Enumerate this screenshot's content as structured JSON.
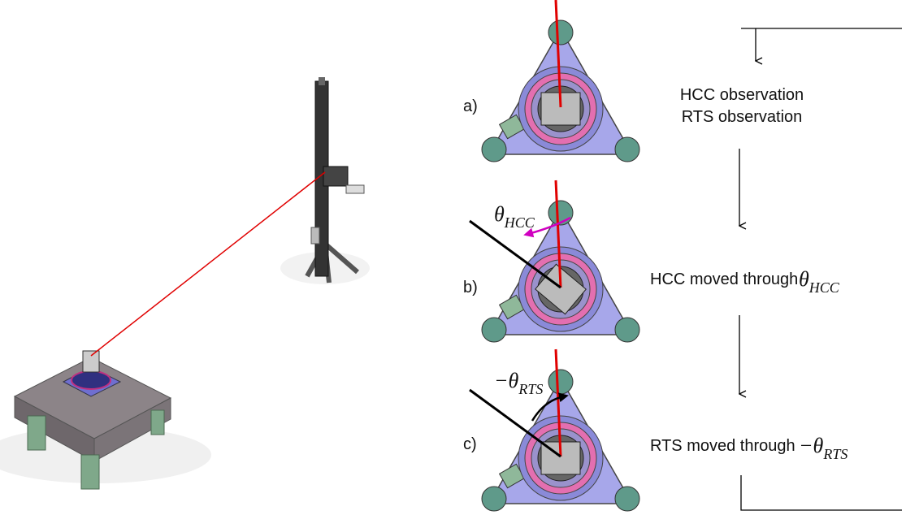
{
  "steps": [
    {
      "label": "a)",
      "description": [
        "HCC observation",
        "RTS observation"
      ]
    },
    {
      "label": "b)",
      "description": [
        "HCC moved through"
      ],
      "angle": {
        "symbol": "θ",
        "subscript": "HCC"
      }
    },
    {
      "label": "c)",
      "description": [
        "RTS moved through"
      ],
      "angle": {
        "symbol": "−θ",
        "subscript": "RTS"
      }
    }
  ]
}
